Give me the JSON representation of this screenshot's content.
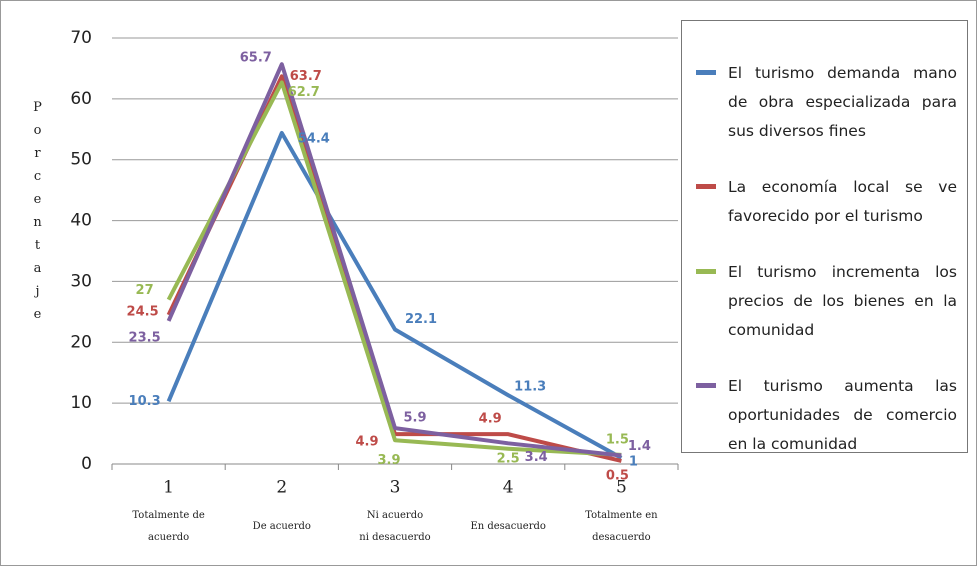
{
  "chart_data": {
    "type": "line",
    "y_label": "Porcentaje",
    "categories": [
      "1",
      "2",
      "3",
      "4",
      "5"
    ],
    "category_descriptions": [
      "Totalmente de acuerdo",
      "De acuerdo",
      "Ni acuerdo ni desacuerdo",
      "En desacuerdo",
      "Totalmente en desacuerdo"
    ],
    "series": [
      {
        "name": "El turismo demanda mano de obra especializada para sus diversos fines",
        "color": "#4a7ebb",
        "values": [
          10.3,
          54.4,
          22.1,
          11.3,
          1
        ]
      },
      {
        "name": "La economía local se ve favorecido por el turismo",
        "color": "#be4b48",
        "values": [
          24.5,
          63.7,
          4.9,
          4.9,
          0.5
        ]
      },
      {
        "name": "El turismo incrementa los precios de los bienes en la comunidad",
        "color": "#98b954",
        "values": [
          27,
          62.7,
          3.9,
          2.5,
          1.5
        ]
      },
      {
        "name": "El turismo aumenta las oportunidades de comercio en la comunidad",
        "color": "#7d60a0",
        "values": [
          23.5,
          65.7,
          5.9,
          3.4,
          1.4
        ]
      }
    ],
    "ylim": [
      0,
      70
    ],
    "yticks": [
      0,
      10,
      20,
      30,
      40,
      50,
      60,
      70
    ],
    "grid": true,
    "legend": "right"
  }
}
